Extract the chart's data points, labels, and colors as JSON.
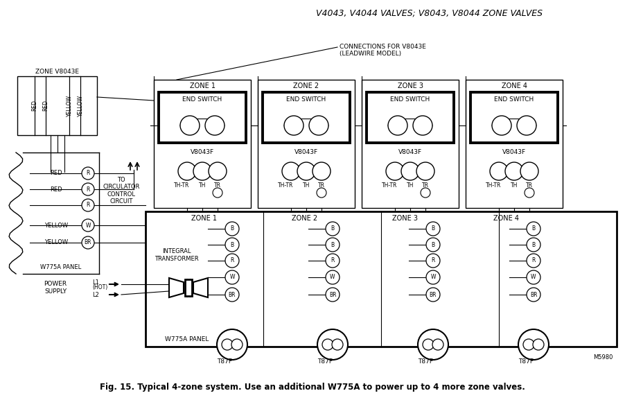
{
  "title": "V4043, V4044 VALVES; V8043, V8044 ZONE VALVES",
  "caption": "Fig. 15. Typical 4-zone system. Use an additional W775A to power up to 4 more zone valves.",
  "bg_color": "#ffffff",
  "line_color": "#000000",
  "text_color": "#000000",
  "zone_labels_top": [
    "ZONE 1",
    "ZONE 2",
    "ZONE 3",
    "ZONE 4"
  ],
  "zone_labels_bottom": [
    "ZONE 1",
    "ZONE 2",
    "ZONE 3",
    "ZONE 4"
  ],
  "end_switch_label": "END SWITCH",
  "valve_label": "V8043F",
  "wire_colors_left_panel": [
    "RED",
    "RED",
    "",
    "YELLOW",
    "YELLOW"
  ],
  "wire_terminals_left": [
    "R",
    "R",
    "R",
    "W",
    "BR"
  ],
  "wire_terminals_bottom": [
    "B",
    "B",
    "R",
    "W",
    "BR"
  ],
  "left_panel_label": "W775A PANEL",
  "bottom_panel_label": "W775A PANEL",
  "zone_v8043e_label": "ZONE V8043E",
  "integral_transformer_label": "INTEGRAL\nTRANSFORMER",
  "power_supply_label": "POWER\nSUPPLY",
  "l1_label": "L1",
  "l1_hot_label": "(HOT)",
  "l2_label": "L2",
  "to_circulator_label": "TO\nCIRCULATOR\nCONTROL\nCIRCUIT",
  "connections_label": "CONNECTIONS FOR V8043E\n(LEADWIRE MODEL)",
  "t87f_label": "T87F",
  "m5980_label": "M5980",
  "th_tr_label": "TH-TR",
  "th_label": "TH",
  "tr_label": "TR"
}
